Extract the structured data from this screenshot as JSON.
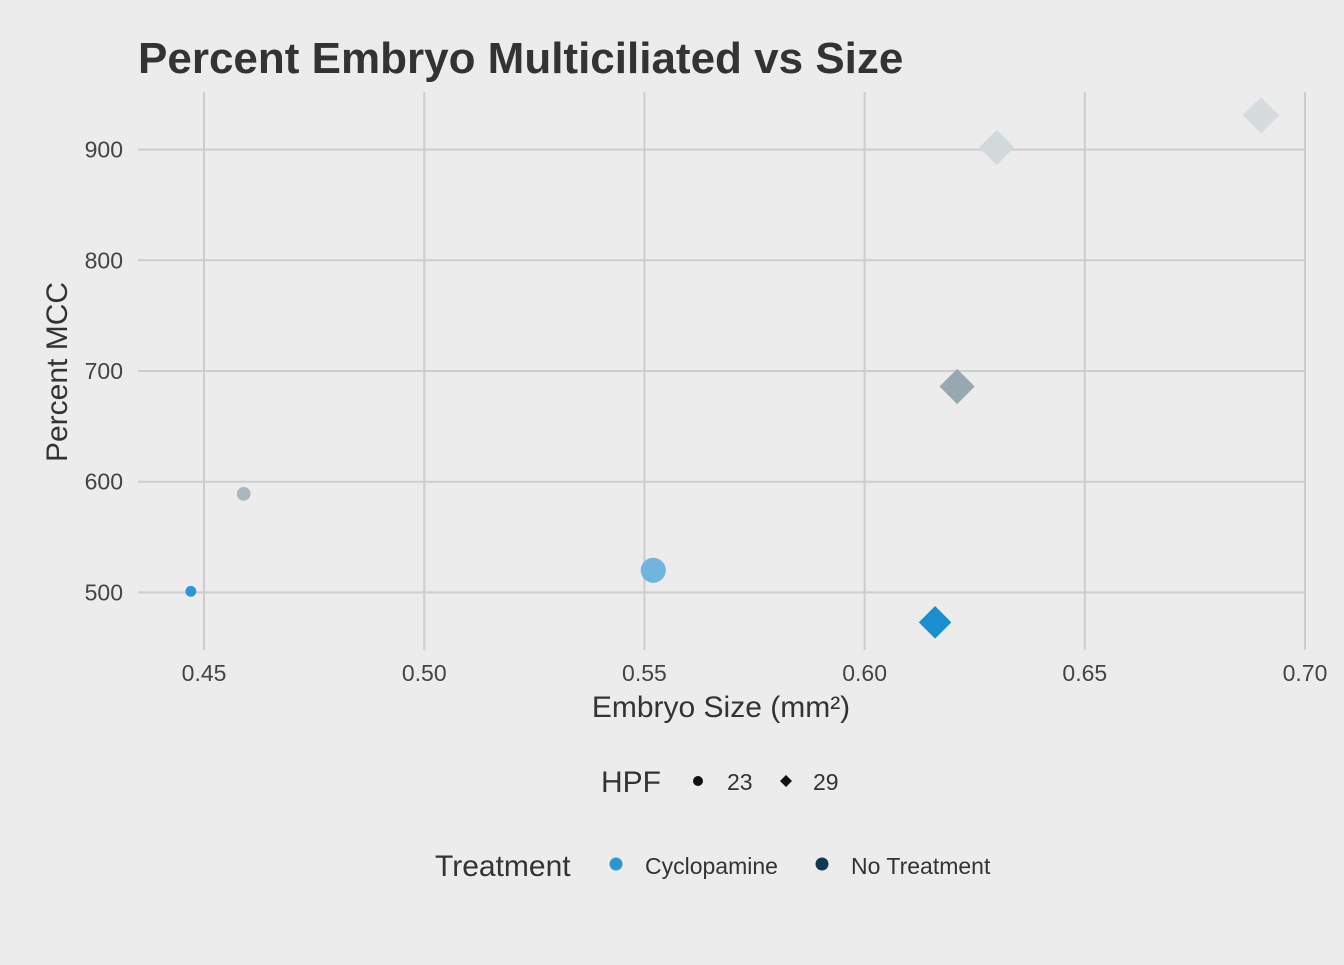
{
  "chart_data": {
    "type": "scatter",
    "title": "Percent Embryo Multiciliated vs Size",
    "xlabel": "Embryo Size (mm²)",
    "ylabel": "Percent MCC",
    "xlim": [
      0.435,
      0.7
    ],
    "ylim": [
      448,
      952
    ],
    "x_ticks": [
      0.45,
      0.5,
      0.55,
      0.6,
      0.65,
      0.7
    ],
    "x_tick_labels": [
      "0.45",
      "0.50",
      "0.55",
      "0.60",
      "0.65",
      "0.70"
    ],
    "y_ticks": [
      500,
      600,
      700,
      800,
      900
    ],
    "y_tick_labels": [
      "500",
      "600",
      "700",
      "800",
      "900"
    ],
    "grid": true,
    "points": [
      {
        "x": 0.447,
        "y": 501,
        "hpf": "23",
        "treatment": "Cyclopamine",
        "color": "#2b96d0",
        "size": 0.15
      },
      {
        "x": 0.459,
        "y": 589,
        "hpf": "23",
        "treatment": "No Treatment",
        "color": "#a9b8be",
        "size": 0.3
      },
      {
        "x": 0.552,
        "y": 520,
        "hpf": "23",
        "treatment": "Cyclopamine",
        "color": "#6fb5dd",
        "size": 0.9
      },
      {
        "x": 0.616,
        "y": 473,
        "hpf": "29",
        "treatment": "Cyclopamine",
        "color": "#1a8fcf",
        "size": 0.85
      },
      {
        "x": 0.621,
        "y": 686,
        "hpf": "29",
        "treatment": "No Treatment",
        "color": "#97a8b0",
        "size": 0.95
      },
      {
        "x": 0.63,
        "y": 902,
        "hpf": "29",
        "treatment": "No Treatment",
        "color": "#d2d9db",
        "size": 0.95
      },
      {
        "x": 0.69,
        "y": 931,
        "hpf": "29",
        "treatment": "No Treatment",
        "color": "#d6dcde",
        "size": 1.0
      }
    ],
    "legend_placement": "bottom",
    "legends": {
      "shape": {
        "title": "HPF",
        "items": [
          {
            "label": "23",
            "shape": "circle"
          },
          {
            "label": "29",
            "shape": "diamond"
          }
        ]
      },
      "color": {
        "title": "Treatment",
        "items": [
          {
            "label": "Cyclopamine",
            "color": "#2b96d0"
          },
          {
            "label": "No Treatment",
            "color": "#0f3a52"
          }
        ]
      }
    }
  }
}
